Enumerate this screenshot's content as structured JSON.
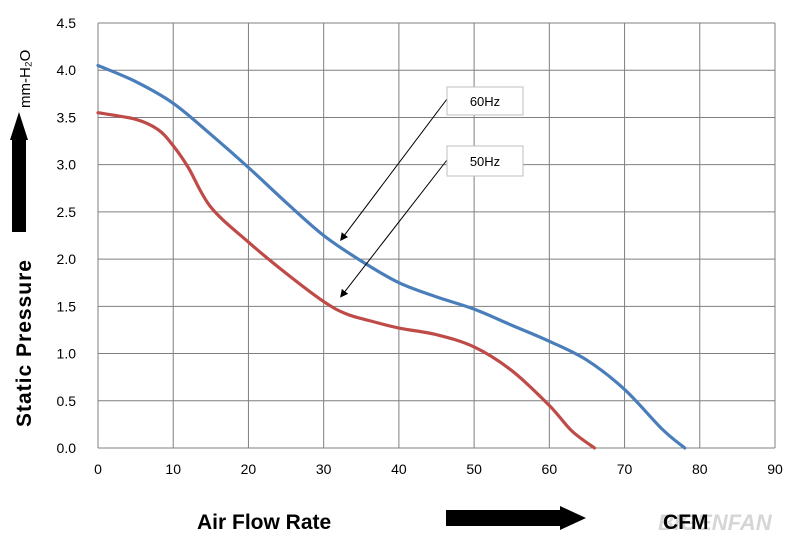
{
  "chart_data": {
    "type": "line",
    "xlim": [
      0,
      90
    ],
    "ylim": [
      0,
      4.5
    ],
    "x_ticks": [
      "0",
      "10",
      "20",
      "30",
      "40",
      "50",
      "60",
      "70",
      "80",
      "90"
    ],
    "y_ticks": [
      "0.0",
      "0.5",
      "1.0",
      "1.5",
      "2.0",
      "2.5",
      "3.0",
      "3.5",
      "4.0",
      "4.5"
    ],
    "grid": true,
    "ylabel": "Static Pressure",
    "yunit": "mm-H₂O",
    "xlabel": "Air Flow Rate",
    "xunit": "CFM",
    "series": [
      {
        "name": "60Hz",
        "color": "#4a7ebb",
        "x": [
          0,
          5,
          10,
          15,
          20,
          25,
          30,
          35,
          40,
          45,
          50,
          55,
          60,
          65,
          70,
          75,
          78
        ],
        "y": [
          4.05,
          3.88,
          3.65,
          3.32,
          2.97,
          2.6,
          2.25,
          1.98,
          1.75,
          1.6,
          1.47,
          1.3,
          1.13,
          0.93,
          0.62,
          0.2,
          0.0
        ]
      },
      {
        "name": "50Hz",
        "color": "#be4b48",
        "x": [
          0,
          5,
          8,
          10,
          12,
          15,
          20,
          25,
          30,
          33,
          36,
          40,
          45,
          50,
          55,
          60,
          63,
          66
        ],
        "y": [
          3.55,
          3.48,
          3.37,
          3.2,
          2.97,
          2.55,
          2.18,
          1.85,
          1.55,
          1.42,
          1.35,
          1.27,
          1.2,
          1.07,
          0.82,
          0.45,
          0.18,
          0.0
        ]
      }
    ],
    "annotations": [
      {
        "text": "60Hz",
        "series": "60Hz",
        "target": [
          32,
          2.2
        ]
      },
      {
        "text": "50Hz",
        "series": "50Hz",
        "target": [
          32,
          1.6
        ]
      }
    ]
  },
  "watermark": "BIGENFAN"
}
